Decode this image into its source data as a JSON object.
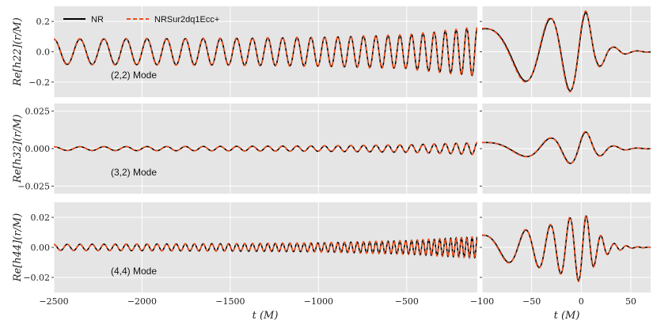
{
  "chart_data": [
    {
      "type": "line",
      "panel": "left",
      "ylabel": "Re[h22](r/M)",
      "annotation": "(2,2) Mode",
      "xlim": [
        -2500,
        -100
      ],
      "ylim": [
        -0.3,
        0.3
      ],
      "yticks": [
        "0.2",
        "0.0",
        "−0.2"
      ],
      "ytick_values": [
        0.2,
        0.0,
        -0.2
      ],
      "amplitude": {
        "x": [
          -2500,
          -1500,
          -1000,
          -500,
          -100
        ],
        "y": [
          0.083,
          0.088,
          0.095,
          0.11,
          0.16
        ]
      },
      "cycles": 28,
      "grid": true
    },
    {
      "type": "line",
      "panel": "right",
      "xlim": [
        -100,
        70
      ],
      "ylim": [
        -0.3,
        0.3
      ],
      "amplitude": {
        "x": [
          -100,
          -60,
          -30,
          -10,
          0,
          5,
          15,
          30,
          50,
          70
        ],
        "y": [
          0.15,
          0.19,
          0.22,
          0.26,
          0.28,
          0.26,
          0.12,
          0.035,
          0.008,
          0.001
        ]
      },
      "grid": true
    },
    {
      "type": "line",
      "panel": "left",
      "ylabel": "Re[h32](r/M)",
      "annotation": "(3,2) Mode",
      "xlim": [
        -2500,
        -100
      ],
      "ylim": [
        -0.03,
        0.03
      ],
      "yticks": [
        "0.025",
        "0.000",
        "−0.025"
      ],
      "ytick_values": [
        0.025,
        0.0,
        -0.025
      ],
      "amplitude": {
        "x": [
          -2500,
          -1500,
          -1000,
          -500,
          -100
        ],
        "y": [
          0.0012,
          0.0015,
          0.0018,
          0.0025,
          0.004
        ]
      },
      "cycles": 28,
      "grid": true
    },
    {
      "type": "line",
      "panel": "right",
      "xlim": [
        -100,
        70
      ],
      "ylim": [
        -0.03,
        0.03
      ],
      "amplitude": {
        "x": [
          -100,
          -60,
          -30,
          -10,
          0,
          5,
          15,
          30,
          50,
          70
        ],
        "y": [
          0.004,
          0.005,
          0.007,
          0.01,
          0.012,
          0.011,
          0.006,
          0.002,
          0.0005,
          0.0001
        ]
      },
      "grid": true
    },
    {
      "type": "line",
      "panel": "left",
      "ylabel": "Re[h44](r/M)",
      "annotation": "(4,4) Mode",
      "xlim": [
        -2500,
        -100
      ],
      "ylim": [
        -0.03,
        0.03
      ],
      "yticks": [
        "0.02",
        "0.00",
        "−0.02"
      ],
      "ytick_values": [
        0.02,
        0.0,
        -0.02
      ],
      "amplitude": {
        "x": [
          -2500,
          -1500,
          -1000,
          -500,
          -100
        ],
        "y": [
          0.002,
          0.0025,
          0.003,
          0.0045,
          0.007
        ]
      },
      "cycles": 56,
      "grid": true
    },
    {
      "type": "line",
      "panel": "right",
      "xlim": [
        -100,
        70
      ],
      "ylim": [
        -0.03,
        0.03
      ],
      "amplitude": {
        "x": [
          -100,
          -60,
          -30,
          -10,
          0,
          5,
          15,
          30,
          50,
          70
        ],
        "y": [
          0.008,
          0.011,
          0.015,
          0.02,
          0.023,
          0.021,
          0.01,
          0.003,
          0.0005,
          0.0001
        ]
      },
      "grid": true
    }
  ],
  "legend": {
    "entries": [
      "NR",
      "NRSur2dq1Ecc+"
    ],
    "placement": "top-left"
  },
  "colors": {
    "nr": "#000000",
    "surrogate": "#f04e1a",
    "panel_bg": "#e5e5e5",
    "grid": "#ffffff"
  },
  "xaxis_left": {
    "label": "t (M)",
    "ticks": [
      "−2500",
      "−2000",
      "−1500",
      "−1000",
      "−500"
    ],
    "tick_values": [
      -2500,
      -2000,
      -1500,
      -1000,
      -500
    ]
  },
  "xaxis_right": {
    "label": "t (M)",
    "ticks": [
      "−100",
      "−50",
      "0",
      "50"
    ],
    "tick_values": [
      -100,
      -50,
      0,
      50
    ]
  }
}
